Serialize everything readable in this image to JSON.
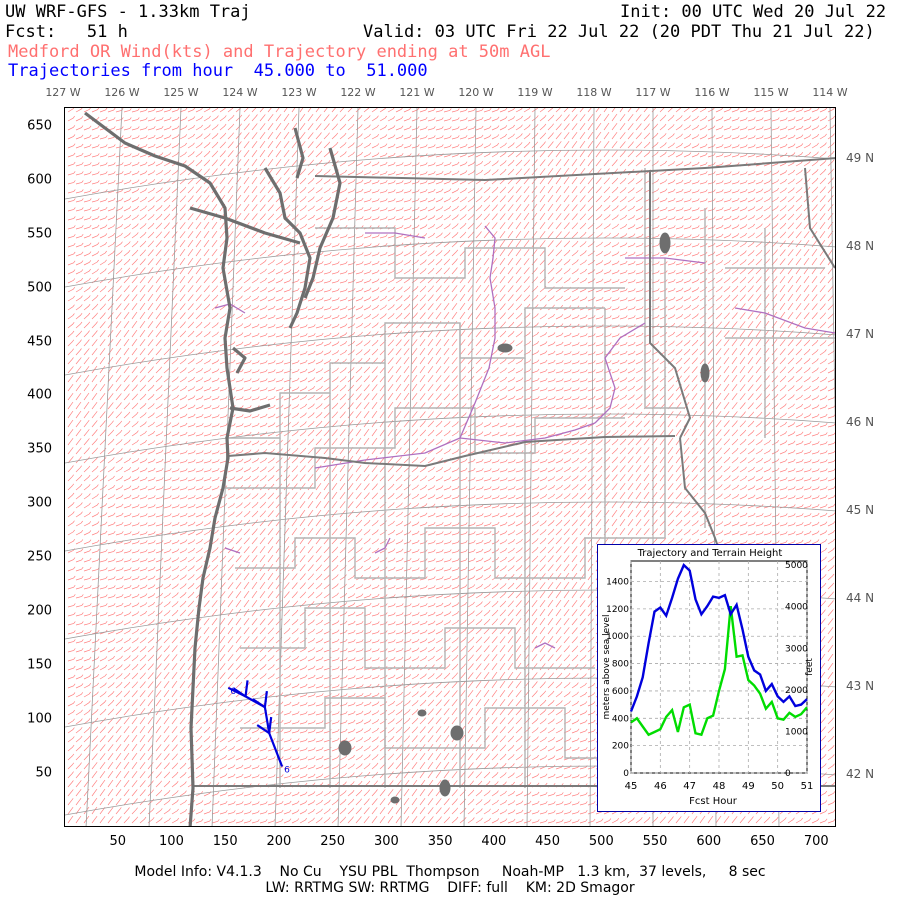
{
  "header": {
    "title": "UW WRF-GFS - 1.33km Traj",
    "init": "Init: 00 UTC Wed 20 Jul 22",
    "fcst": "Fcst:   51 h",
    "valid": "Valid: 03 UTC Fri 22 Jul 22 (20 PDT Thu 21 Jul 22)",
    "product": "Medford OR Wind(kts) and Trajectory ending at 50m AGL",
    "trajectory_range": "Trajectories from hour  45.000 to  51.000"
  },
  "map": {
    "longitude_labels": [
      "127 W",
      "126 W",
      "125 W",
      "124 W",
      "123 W",
      "122 W",
      "121 W",
      "120 W",
      "119 W",
      "118 W",
      "117 W",
      "116 W",
      "115 W",
      "114 W"
    ],
    "latitude_labels": [
      "49 N",
      "48 N",
      "47 N",
      "46 N",
      "45 N",
      "44 N",
      "43 N",
      "42 N"
    ],
    "x_ticks": [
      "50",
      "100",
      "150",
      "200",
      "250",
      "300",
      "350",
      "400",
      "450",
      "500",
      "550",
      "600",
      "650",
      "700"
    ],
    "y_ticks": [
      "650",
      "600",
      "550",
      "500",
      "450",
      "400",
      "350",
      "300",
      "250",
      "200",
      "150",
      "100",
      "50"
    ],
    "x_range": [
      0,
      710
    ],
    "y_range": [
      0,
      660
    ],
    "trajectory_points": [
      {
        "x": 202,
        "y": 57
      },
      {
        "x": 190,
        "y": 88
      },
      {
        "x": 186,
        "y": 112
      },
      {
        "x": 168,
        "y": 122
      },
      {
        "x": 152,
        "y": 130
      }
    ],
    "trajectory_marks": [
      {
        "x": 202,
        "y": 57,
        "label": "6"
      },
      {
        "x": 152,
        "y": 130,
        "label": "6"
      }
    ],
    "colors": {
      "wind_barbs": "#ff8080",
      "coast": "#6e6e6e",
      "borders": "#aaaaaa",
      "rivers": "#b070c0",
      "trajectory": "#0000dd"
    }
  },
  "inset": {
    "title": "Trajectory and Terrain Height",
    "ylabel_left": "meters above sea level",
    "ylabel_right": "feet",
    "xlabel": "Fcst Hour",
    "chart_data": {
      "type": "line",
      "title": "Trajectory and Terrain Height",
      "xlabel": "Fcst Hour",
      "ylabel": "meters above sea level",
      "y2label": "feet",
      "xlim": [
        45,
        51
      ],
      "ylim": [
        0,
        1550
      ],
      "y2lim": [
        0,
        5100
      ],
      "x_ticks": [
        "45",
        "46",
        "47",
        "48",
        "49",
        "50",
        "51"
      ],
      "y_ticks": [
        "0",
        "200",
        "400",
        "600",
        "800",
        "1000",
        "1200",
        "1400"
      ],
      "y2_ticks": [
        "0",
        "1000",
        "2000",
        "3000",
        "4000",
        "5000"
      ],
      "grid": true,
      "series": [
        {
          "color": "#0000dd",
          "x": [
            45,
            45.2,
            45.4,
            45.6,
            45.8,
            46,
            46.2,
            46.4,
            46.6,
            46.8,
            47,
            47.2,
            47.4,
            47.6,
            47.8,
            48,
            48.2,
            48.4,
            48.6,
            48.8,
            49,
            49.2,
            49.4,
            49.6,
            49.8,
            50,
            50.2,
            50.4,
            50.6,
            50.8,
            51
          ],
          "values": [
            450,
            560,
            700,
            950,
            1180,
            1210,
            1150,
            1280,
            1420,
            1520,
            1480,
            1270,
            1160,
            1220,
            1290,
            1280,
            1300,
            1160,
            1230,
            1050,
            850,
            750,
            720,
            600,
            650,
            560,
            520,
            560,
            490,
            500,
            540
          ]
        },
        {
          "color": "#00dd00",
          "x": [
            45,
            45.2,
            45.4,
            45.6,
            45.8,
            46,
            46.2,
            46.4,
            46.6,
            46.8,
            47,
            47.2,
            47.4,
            47.6,
            47.8,
            48,
            48.2,
            48.4,
            48.6,
            48.8,
            49,
            49.2,
            49.4,
            49.6,
            49.8,
            50,
            50.2,
            50.4,
            50.6,
            50.8,
            51
          ],
          "values": [
            370,
            400,
            340,
            280,
            300,
            320,
            410,
            460,
            300,
            480,
            500,
            290,
            280,
            400,
            420,
            600,
            760,
            1220,
            850,
            860,
            680,
            640,
            580,
            470,
            520,
            400,
            390,
            440,
            410,
            430,
            480
          ]
        }
      ]
    }
  },
  "footer": {
    "line1": "Model Info: V4.1.3    No Cu    YSU PBL  Thompson     Noah-MP   1.3 km,  37 levels,     8 sec",
    "line2": "LW: RRTMG SW: RRTMG    DIFF: full    KM: 2D Smagor"
  }
}
